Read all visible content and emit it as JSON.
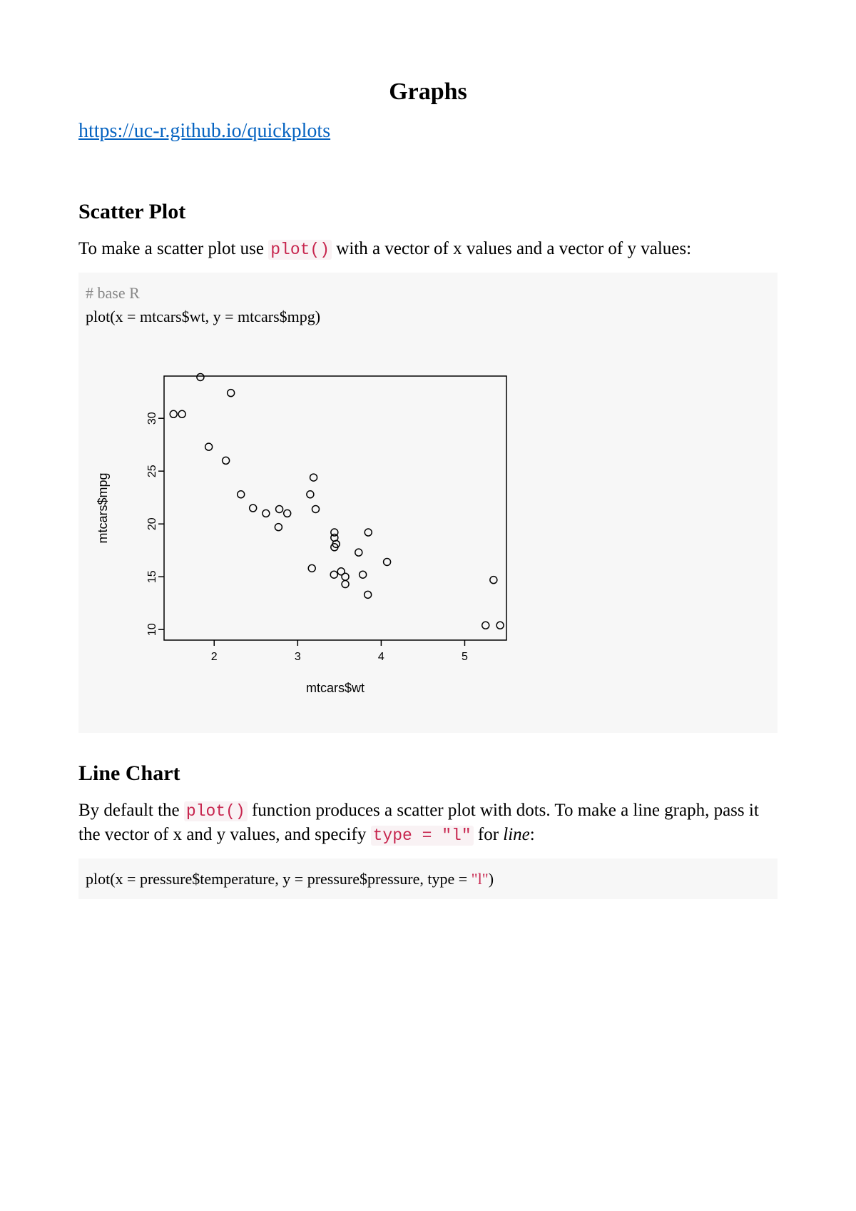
{
  "title": "Graphs",
  "link": {
    "text": "https://uc-r.github.io/quickplots",
    "href": "https://uc-r.github.io/quickplots"
  },
  "scatter": {
    "heading": "Scatter Plot",
    "intro_pre": "To make a scatter plot use ",
    "intro_code": "plot()",
    "intro_post": " with a vector of x values and a vector of y values:",
    "code_comment": "# base R",
    "code_line": "plot(x = mtcars$wt, y = mtcars$mpg)",
    "chart": {
      "type": "scatter",
      "xlabel": "mtcars$wt",
      "ylabel": "mtcars$mpg",
      "xlim": [
        1.4,
        5.5
      ],
      "ylim": [
        9,
        34
      ],
      "xticks": [
        2,
        3,
        4,
        5
      ],
      "yticks": [
        10,
        15,
        20,
        25,
        30
      ],
      "label_fontsize": 18,
      "tick_fontsize": 16,
      "marker": {
        "shape": "circle",
        "radius_px": 5,
        "stroke": "#000000",
        "fill": "none",
        "stroke_width": 1.5
      },
      "box_color": "#000000",
      "background_color": "#f7f7f7",
      "points": [
        [
          2.62,
          21.0
        ],
        [
          2.875,
          21.0
        ],
        [
          2.32,
          22.8
        ],
        [
          3.215,
          21.4
        ],
        [
          3.44,
          18.7
        ],
        [
          3.46,
          18.1
        ],
        [
          3.57,
          14.3
        ],
        [
          3.19,
          24.4
        ],
        [
          3.15,
          22.8
        ],
        [
          3.44,
          19.2
        ],
        [
          3.44,
          17.8
        ],
        [
          4.07,
          16.4
        ],
        [
          3.73,
          17.3
        ],
        [
          3.78,
          15.2
        ],
        [
          5.25,
          10.4
        ],
        [
          5.424,
          10.4
        ],
        [
          5.345,
          14.7
        ],
        [
          2.2,
          32.4
        ],
        [
          1.615,
          30.4
        ],
        [
          1.835,
          33.9
        ],
        [
          2.465,
          21.5
        ],
        [
          3.52,
          15.5
        ],
        [
          3.435,
          15.2
        ],
        [
          3.84,
          13.3
        ],
        [
          3.845,
          19.2
        ],
        [
          1.935,
          27.3
        ],
        [
          2.14,
          26.0
        ],
        [
          1.513,
          30.4
        ],
        [
          3.17,
          15.8
        ],
        [
          2.77,
          19.7
        ],
        [
          3.57,
          15.0
        ],
        [
          2.78,
          21.4
        ]
      ]
    }
  },
  "line": {
    "heading": "Line Chart",
    "intro_p1_pre": "By default the ",
    "intro_p1_code": "plot()",
    "intro_p1_mid": " function produces a scatter plot with dots. To make a line graph, pass it the vector of x and y values, and specify ",
    "intro_p1_code2": "type = \"l\"",
    "intro_p1_for": " for ",
    "intro_p1_line": "line",
    "intro_p1_end": ":",
    "code_line_pre": "plot(x = pressure$temperature, y = pressure$pressure, type = ",
    "code_line_str": "\"l\"",
    "code_line_post": ")"
  }
}
